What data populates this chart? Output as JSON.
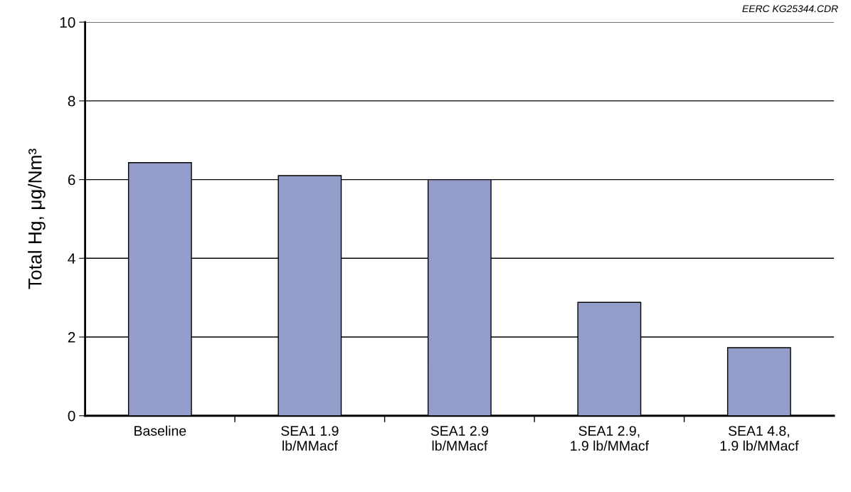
{
  "chart_data": {
    "type": "bar",
    "ylabel": "Total Hg, μg/Nm³",
    "categories": [
      "Baseline",
      "SEA1 1.9\nlb/MMacf",
      "SEA1 2.9\nlb/MMacf",
      "SEA1 2.9,\n1.9 lb/MMacf",
      "SEA1 4.8,\n1.9 lb/MMacf"
    ],
    "values": [
      6.43,
      6.1,
      6.0,
      2.88,
      1.73
    ],
    "color": "#949dc9",
    "ylim": [
      0,
      10
    ],
    "yticks": [
      0,
      2,
      4,
      6,
      8,
      10
    ],
    "grid": "y",
    "annotations": [
      "EERC KG25344.CDR"
    ]
  }
}
